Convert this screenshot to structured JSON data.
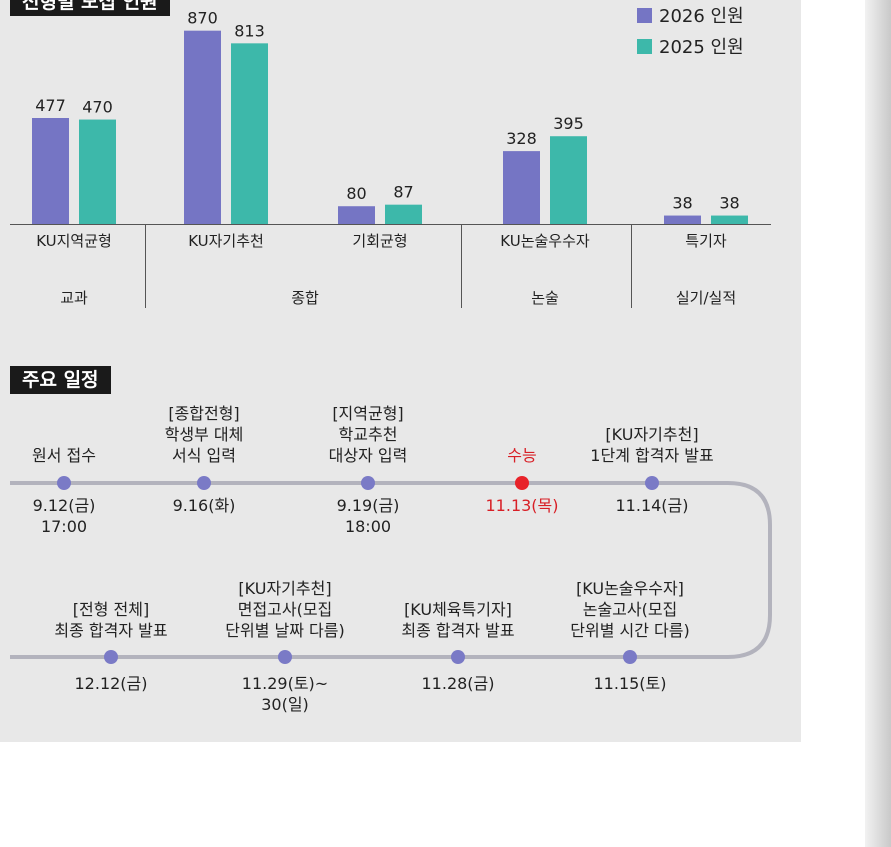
{
  "recruit_tag": "전형별 모집 인원",
  "schedule_tag": "주요 일정",
  "legend": [
    {
      "label": "2026 인원",
      "color": "#7575c4"
    },
    {
      "label": "2025 인원",
      "color": "#3db8aa"
    }
  ],
  "chart_data": {
    "type": "bar",
    "categories": [
      "KU지역균형",
      "KU자기추천",
      "기회균형",
      "KU논술우수자",
      "특기자"
    ],
    "groups": [
      "교과",
      "종합",
      "종합",
      "논술",
      "실기/실적"
    ],
    "group_labels": [
      "교과",
      "종합",
      "논술",
      "실기/실적"
    ],
    "series": [
      {
        "name": "2026 인원",
        "values": [
          477,
          870,
          80,
          328,
          38
        ]
      },
      {
        "name": "2025 인원",
        "values": [
          470,
          813,
          87,
          395,
          38
        ]
      }
    ],
    "ylim": [
      0,
      900
    ]
  },
  "timeline": {
    "row1": [
      {
        "label": [
          "원서 접수"
        ],
        "date": [
          "9.12(금)",
          "17:00"
        ],
        "highlight": false
      },
      {
        "label": [
          "[종합전형]",
          "학생부 대체",
          "서식 입력"
        ],
        "date": [
          "9.16(화)"
        ],
        "highlight": false
      },
      {
        "label": [
          "[지역균형]",
          "학교추천",
          "대상자 입력"
        ],
        "date": [
          "9.19(금)",
          "18:00"
        ],
        "highlight": false
      },
      {
        "label": [
          "수능"
        ],
        "date": [
          "11.13(목)"
        ],
        "highlight": true
      },
      {
        "label": [
          "[KU자기추천]",
          "1단계 합격자 발표"
        ],
        "date": [
          "11.14(금)"
        ],
        "highlight": false
      }
    ],
    "row2": [
      {
        "label": [
          "[전형 전체]",
          "최종 합격자 발표"
        ],
        "date": [
          "12.12(금)"
        ],
        "highlight": false
      },
      {
        "label": [
          "[KU자기추천]",
          "면접고사(모집",
          "단위별 날짜 다름)"
        ],
        "date": [
          "11.29(토)~",
          "30(일)"
        ],
        "highlight": false
      },
      {
        "label": [
          "[KU체육특기자]",
          "최종 합격자 발표"
        ],
        "date": [
          "11.28(금)"
        ],
        "highlight": false
      },
      {
        "label": [
          "[KU논술우수자]",
          "논술고사(모집",
          "단위별 시간 다름)"
        ],
        "date": [
          "11.15(토)"
        ],
        "highlight": false
      }
    ]
  },
  "colors": {
    "dot": "#7a7ac6",
    "dot_highlight": "#e8232a",
    "track": "#b3b3bd"
  }
}
